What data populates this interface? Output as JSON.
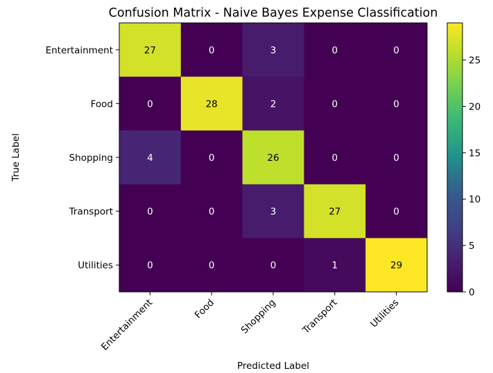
{
  "chart_data": {
    "type": "heatmap",
    "title": "Confusion Matrix - Naive Bayes Expense Classification",
    "xlabel": "Predicted Label",
    "ylabel": "True Label",
    "x_categories": [
      "Entertainment",
      "Food",
      "Shopping",
      "Transport",
      "Utilities"
    ],
    "y_categories": [
      "Entertainment",
      "Food",
      "Shopping",
      "Transport",
      "Utilities"
    ],
    "matrix": [
      [
        27,
        0,
        3,
        0,
        0
      ],
      [
        0,
        28,
        2,
        0,
        0
      ],
      [
        4,
        0,
        26,
        0,
        0
      ],
      [
        0,
        0,
        3,
        27,
        0
      ],
      [
        0,
        0,
        0,
        1,
        29
      ]
    ],
    "colorbar": {
      "colormap": "viridis",
      "vmin": 0,
      "vmax": 29,
      "ticks": [
        "0",
        "5",
        "10",
        "15",
        "20",
        "25"
      ]
    },
    "colors": {
      "low_text": "#ffffff",
      "high_text": "#000000",
      "frame": "#000000"
    }
  }
}
